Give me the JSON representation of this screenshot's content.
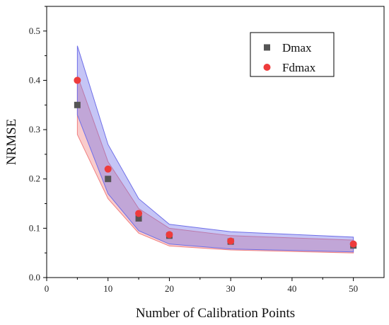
{
  "chart_data": {
    "type": "scatter",
    "xlabel": "Number of Calibration Points",
    "ylabel": "NRMSE",
    "xlim": [
      0,
      55
    ],
    "ylim": [
      0,
      0.55
    ],
    "xticks": [
      0,
      10,
      20,
      30,
      40,
      50
    ],
    "yticks": [
      0.0,
      0.1,
      0.2,
      0.3,
      0.4,
      0.5
    ],
    "xtick_labels": [
      "0",
      "10",
      "20",
      "30",
      "40",
      "50"
    ],
    "ytick_labels": [
      "0.0",
      "0.1",
      "0.2",
      "0.3",
      "0.4",
      "0.5"
    ],
    "grid": false,
    "legend_position": "top-right",
    "series": [
      {
        "name": "Dmax",
        "marker": "square",
        "color": "#555555",
        "x": [
          5,
          10,
          15,
          20,
          30,
          50
        ],
        "y": [
          0.35,
          0.2,
          0.12,
          0.085,
          0.073,
          0.065
        ],
        "band": {
          "color": "#6f6fe8",
          "upper": [
            0.47,
            0.27,
            0.16,
            0.108,
            0.093,
            0.082
          ],
          "lower": [
            0.33,
            0.17,
            0.095,
            0.068,
            0.058,
            0.052
          ]
        }
      },
      {
        "name": "Fdmax",
        "marker": "circle",
        "color": "#ee3b3b",
        "x": [
          5,
          10,
          15,
          20,
          30,
          50
        ],
        "y": [
          0.4,
          0.22,
          0.13,
          0.087,
          0.074,
          0.068
        ],
        "band": {
          "color": "#f08080",
          "upper": [
            0.41,
            0.235,
            0.14,
            0.1,
            0.085,
            0.076
          ],
          "lower": [
            0.29,
            0.16,
            0.09,
            0.064,
            0.056,
            0.05
          ]
        }
      }
    ]
  }
}
